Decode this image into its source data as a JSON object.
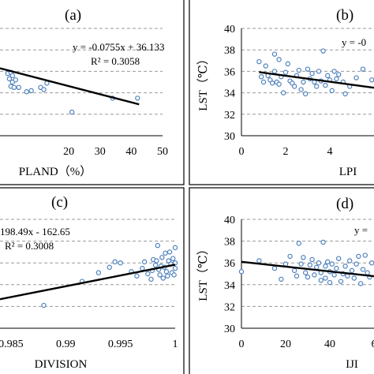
{
  "chart_data": [
    {
      "type": "scatter",
      "panel_label": "(a)",
      "xlabel": "PLAND（%）",
      "ylabel": "",
      "x_ticks": [
        "20",
        "30",
        "40",
        "50"
      ],
      "y_ticks": [],
      "equation": "y = -0.0755x + 36.133",
      "r2": "R² = 0.3058",
      "xlim": [
        -2,
        50
      ],
      "ylim": [
        30,
        40
      ],
      "grid": "dashed horizontal",
      "trendline": {
        "slope": -0.0755,
        "intercept": 36.133,
        "x_range": [
          -2,
          42.5
        ]
      },
      "points": [
        [
          0.5,
          35.8
        ],
        [
          1.5,
          35.9
        ],
        [
          1,
          35.3
        ],
        [
          2,
          35.0
        ],
        [
          1.5,
          34.6
        ],
        [
          2.5,
          34.5
        ],
        [
          3,
          35.2
        ],
        [
          2,
          35.6
        ],
        [
          4,
          34.5
        ],
        [
          6.5,
          34.1
        ],
        [
          8,
          34.2
        ],
        [
          11,
          34.5
        ],
        [
          12,
          34.3
        ],
        [
          13,
          34.9
        ],
        [
          21,
          32.2
        ],
        [
          34,
          33.5
        ],
        [
          42,
          33.5
        ]
      ]
    },
    {
      "type": "scatter",
      "panel_label": "(b)",
      "xlabel": "LPI",
      "ylabel": "LST（℃）",
      "x_ticks": [
        "0",
        "2",
        "4"
      ],
      "y_ticks": [
        "30",
        "32",
        "34",
        "36",
        "38",
        "40"
      ],
      "equation": "y = -0",
      "r2": "",
      "xlim": [
        0,
        6
      ],
      "ylim": [
        30,
        40
      ],
      "grid": "dashed horizontal",
      "trendline": {
        "slope": -0.28,
        "intercept": 36.15,
        "x_range": [
          0.8,
          6
        ]
      },
      "points": [
        [
          0.8,
          36.9
        ],
        [
          0.9,
          35.5
        ],
        [
          1.0,
          35.0
        ],
        [
          1.1,
          36.5
        ],
        [
          1.2,
          35.6
        ],
        [
          1.3,
          35.2
        ],
        [
          1.4,
          34.9
        ],
        [
          1.5,
          36.0
        ],
        [
          1.5,
          37.6
        ],
        [
          1.6,
          35.0
        ],
        [
          1.7,
          37.1
        ],
        [
          1.7,
          34.8
        ],
        [
          1.8,
          35.5
        ],
        [
          1.9,
          34.0
        ],
        [
          2.0,
          35.9
        ],
        [
          2.1,
          36.7
        ],
        [
          2.2,
          35.1
        ],
        [
          2.3,
          34.9
        ],
        [
          2.4,
          34.6
        ],
        [
          2.5,
          35.6
        ],
        [
          2.6,
          36.1
        ],
        [
          2.7,
          34.3
        ],
        [
          2.8,
          35.0
        ],
        [
          2.9,
          33.9
        ],
        [
          3.0,
          36.2
        ],
        [
          3.1,
          35.3
        ],
        [
          3.2,
          35.8
        ],
        [
          3.3,
          35.0
        ],
        [
          3.4,
          34.6
        ],
        [
          3.5,
          36.0
        ],
        [
          3.6,
          35.1
        ],
        [
          3.7,
          37.9
        ],
        [
          3.8,
          34.7
        ],
        [
          3.9,
          35.6
        ],
        [
          4.0,
          35.2
        ],
        [
          4.1,
          34.2
        ],
        [
          4.2,
          36.0
        ],
        [
          4.3,
          35.3
        ],
        [
          4.4,
          35.7
        ],
        [
          4.6,
          35.0
        ],
        [
          4.7,
          33.9
        ],
        [
          4.9,
          34.6
        ],
        [
          5.2,
          35.4
        ],
        [
          5.5,
          36.2
        ],
        [
          5.9,
          35.2
        ]
      ]
    },
    {
      "type": "scatter",
      "panel_label": "(c)",
      "xlabel": "DIVISION",
      "ylabel": "",
      "x_ticks": [
        "0.985",
        "0.99",
        "0.995",
        "1"
      ],
      "y_ticks": [],
      "equation": "198.49x - 162.65",
      "r2": "R² = 0.3008",
      "xlim": [
        0.984,
        1.0
      ],
      "ylim": [
        30,
        40
      ],
      "grid": "dashed horizontal",
      "trendline": {
        "slope": 198.49,
        "intercept": -162.65,
        "x_range": [
          0.984,
          1.0
        ]
      },
      "points": [
        [
          0.988,
          32.1
        ],
        [
          0.9915,
          34.3
        ],
        [
          0.993,
          35.1
        ],
        [
          0.994,
          35.6
        ],
        [
          0.9945,
          36.1
        ],
        [
          0.995,
          36.0
        ],
        [
          0.996,
          35.2
        ],
        [
          0.9965,
          34.8
        ],
        [
          0.997,
          35.5
        ],
        [
          0.9972,
          36.1
        ],
        [
          0.9975,
          35.0
        ],
        [
          0.9978,
          34.5
        ],
        [
          0.998,
          36.3
        ],
        [
          0.9982,
          35.8
        ],
        [
          0.9984,
          37.6
        ],
        [
          0.9985,
          35.4
        ],
        [
          0.9986,
          34.9
        ],
        [
          0.9988,
          36.5
        ],
        [
          0.999,
          35.6
        ],
        [
          0.9991,
          36.9
        ],
        [
          0.9992,
          35.2
        ],
        [
          0.9993,
          34.8
        ],
        [
          0.9994,
          36.2
        ],
        [
          0.9995,
          37.0
        ],
        [
          0.9996,
          35.9
        ],
        [
          0.9997,
          35.1
        ],
        [
          0.9998,
          36.4
        ],
        [
          0.9999,
          34.9
        ],
        [
          1.0,
          36.0
        ],
        [
          1.0,
          35.5
        ],
        [
          1.0,
          37.4
        ],
        [
          0.9989,
          34.6
        ],
        [
          0.9987,
          35.7
        ],
        [
          0.9983,
          36.2
        ],
        [
          0.9979,
          35.3
        ]
      ]
    },
    {
      "type": "scatter",
      "panel_label": "(d)",
      "xlabel": "IJI",
      "ylabel": "LST（℃）",
      "x_ticks": [
        "0",
        "20",
        "40",
        "6"
      ],
      "y_ticks": [
        "30",
        "32",
        "34",
        "36",
        "38",
        "40"
      ],
      "equation": "y =",
      "r2": "",
      "xlim": [
        0,
        60
      ],
      "ylim": [
        30,
        40
      ],
      "grid": "dashed horizontal",
      "trendline": {
        "slope": -0.022,
        "intercept": 36.1,
        "x_range": [
          0,
          60
        ]
      },
      "points": [
        [
          0,
          35.2
        ],
        [
          8,
          36.2
        ],
        [
          15,
          35.5
        ],
        [
          18,
          34.5
        ],
        [
          20,
          35.9
        ],
        [
          22,
          36.6
        ],
        [
          24,
          35.3
        ],
        [
          25,
          34.8
        ],
        [
          26,
          37.8
        ],
        [
          27,
          35.9
        ],
        [
          28,
          36.5
        ],
        [
          29,
          35.1
        ],
        [
          30,
          34.7
        ],
        [
          31,
          35.8
        ],
        [
          32,
          36.3
        ],
        [
          33,
          34.9
        ],
        [
          34,
          35.6
        ],
        [
          35,
          36.0
        ],
        [
          36,
          34.4
        ],
        [
          36,
          35.1
        ],
        [
          37,
          37.9
        ],
        [
          38,
          35.7
        ],
        [
          38,
          34.6
        ],
        [
          39,
          36.1
        ],
        [
          40,
          35.2
        ],
        [
          40,
          34.2
        ],
        [
          41,
          35.9
        ],
        [
          42,
          34.9
        ],
        [
          43,
          35.5
        ],
        [
          44,
          36.4
        ],
        [
          45,
          34.3
        ],
        [
          46,
          35.0
        ],
        [
          47,
          35.7
        ],
        [
          48,
          34.8
        ],
        [
          49,
          36.2
        ],
        [
          50,
          35.3
        ],
        [
          51,
          34.6
        ],
        [
          52,
          35.9
        ],
        [
          53,
          36.6
        ],
        [
          54,
          34.1
        ],
        [
          55,
          35.4
        ],
        [
          56,
          36.7
        ],
        [
          57,
          35.1
        ],
        [
          58,
          34.7
        ],
        [
          59,
          36.0
        ]
      ]
    }
  ],
  "colors": {
    "point_stroke": "#4f81bd",
    "trendline": "#000000",
    "grid": "#999999",
    "frame": "#000000"
  }
}
